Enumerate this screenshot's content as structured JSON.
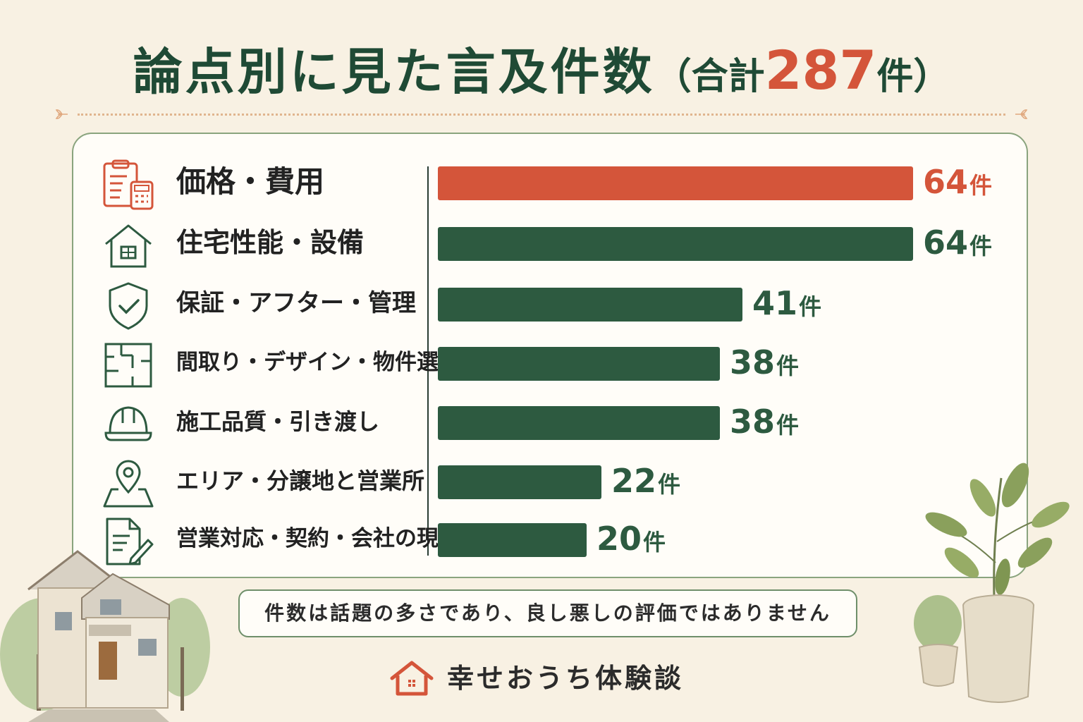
{
  "title": {
    "main": "論点別に見た言及件数",
    "open": "（合計",
    "total": "287",
    "unit": "件）"
  },
  "colors": {
    "highlight": "#d4553a",
    "bar": "#2d5a40",
    "title": "#1f4a35"
  },
  "chart_data": {
    "type": "bar",
    "orientation": "horizontal",
    "unit": "件",
    "categories": [
      "価格・費用",
      "住宅性能・設備",
      "保証・アフター・管理",
      "間取り・デザイン・物件選び",
      "施工品質・引き渡し",
      "エリア・分譲地と営業所",
      "営業対応・契約・会社の現況"
    ],
    "values": [
      64,
      64,
      41,
      38,
      38,
      22,
      20
    ],
    "icons": [
      "clipboard-calculator-icon",
      "house-icon",
      "shield-check-icon",
      "floor-plan-icon",
      "hard-hat-icon",
      "map-pin-icon",
      "document-pen-icon"
    ],
    "highlight_index": 0,
    "xlim": [
      0,
      64
    ],
    "grid": false,
    "legend": "none"
  },
  "note": "件数は話題の多さであり、良し悪しの評価ではありません",
  "brand": {
    "name": "幸せおうち体験談",
    "icon": "house-logo-icon"
  }
}
